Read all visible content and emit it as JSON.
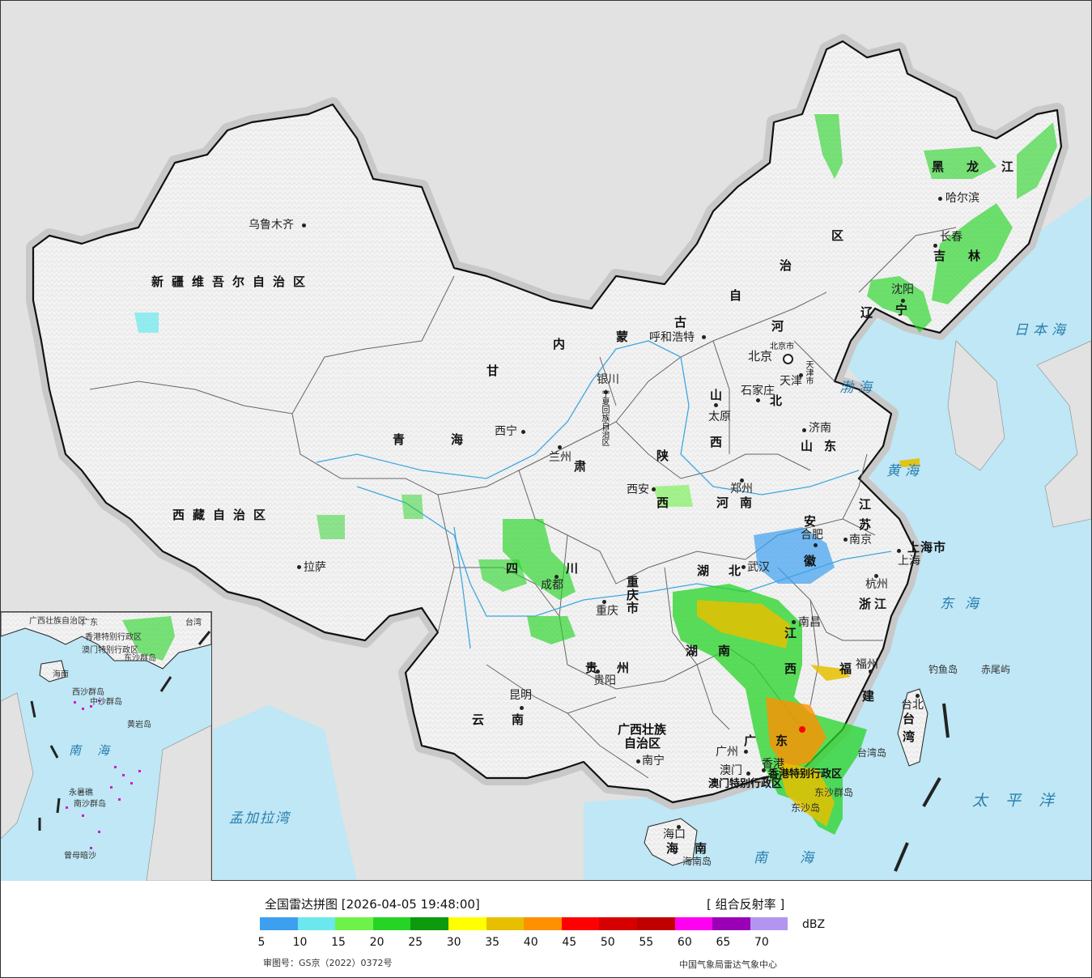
{
  "legend": {
    "title": "全国雷达拼图 [2026-04-05 19:48:00]",
    "product": "[ 组合反射率 ]",
    "unit": "dBZ",
    "ticks": [
      "5",
      "10",
      "15",
      "20",
      "25",
      "30",
      "35",
      "40",
      "45",
      "50",
      "55",
      "60",
      "65",
      "70"
    ],
    "colors": [
      "#3d9ff0",
      "#6ae8ee",
      "#6ef24a",
      "#25d425",
      "#0d9a0d",
      "#ffff00",
      "#e6c000",
      "#ff9000",
      "#ff0000",
      "#d60000",
      "#c00000",
      "#ff00f0",
      "#9900b8",
      "#b395f0"
    ],
    "review_number": "审图号：GS京（2022）0372号",
    "organization": "中国气象局雷达气象中心"
  },
  "provinces": {
    "xinjiang": "新疆维吾尔自治区",
    "xizang": "西藏自治区",
    "qinghai_1": "青",
    "qinghai_2": "海",
    "gansu": "甘",
    "gansu_2": "肃",
    "neimenggu_1": "内",
    "neimenggu_2": "蒙",
    "neimenggu_3": "古",
    "neimenggu_4": "自",
    "neimenggu_5": "治",
    "neimenggu_6": "区",
    "heilongjiang": "黑龙江",
    "jilin": "吉林",
    "liaoning_1": "辽",
    "liaoning_2": "宁",
    "hebei_1": "河",
    "hebei_2": "北",
    "shanxi_1": "山",
    "shanxi_2": "西",
    "shandong": "山东",
    "henan": "河南",
    "shaanxi_1": "陕",
    "shaanxi_2": "西",
    "jiangsu_1": "江",
    "jiangsu_2": "苏",
    "anhui_1": "安",
    "anhui_2": "徽",
    "shanghai": "上海市",
    "zhejiang": "浙江",
    "hubei": "湖北",
    "hunan_1": "湖",
    "hunan_2": "南",
    "jiangxi_1": "江",
    "jiangxi_2": "西",
    "fujian_1": "福",
    "fujian_2": "建",
    "sichuan_1": "四",
    "sichuan_2": "川",
    "chongqing": "重庆市",
    "guizhou": "贵州",
    "yunnan": "云南",
    "guangxi_1": "广西壮族",
    "guangxi_2": "自治区",
    "guangdong": "广东",
    "hainan": "海南",
    "taiwan_1": "台",
    "taiwan_2": "湾",
    "ningxia": "宁夏回族自治区",
    "beijing_full": "北京市",
    "tianjin_full": "天津市",
    "hk": "香港特别行政区",
    "macau": "澳门特别行政区"
  },
  "cities": {
    "urumqi": "乌鲁木齐",
    "lhasa": "拉萨",
    "xining": "西宁",
    "lanzhou": "兰州",
    "yinchuan": "银川",
    "hohhot": "呼和浩特",
    "harbin": "哈尔滨",
    "changchun": "长春",
    "shenyang": "沈阳",
    "beijing": "北京",
    "tianjin": "天津",
    "shijiazhuang": "石家庄",
    "taiyuan": "太原",
    "jinan": "济南",
    "zhengzhou": "郑州",
    "xian": "西安",
    "hefei": "合肥",
    "nanjing": "南京",
    "shanghai": "上海",
    "hangzhou": "杭州",
    "wuhan": "武汉",
    "nanchang": "南昌",
    "fuzhou": "福州",
    "chengdu": "成都",
    "chongqing": "重庆",
    "guiyang": "贵阳",
    "kunming": "昆明",
    "nanning": "南宁",
    "guangzhou": "广州",
    "macau": "澳门",
    "hongkong": "香港",
    "haikou": "海口",
    "taipei": "台北"
  },
  "seas": {
    "bohai": "渤海",
    "huanghai": "黄海",
    "donghai": "东海",
    "nanhai": "南海",
    "riben": "日本海",
    "taipingyang": "太平洋",
    "mengjiala": "孟加拉湾"
  },
  "islands": {
    "diaoyu": "钓鱼岛",
    "chiwei": "赤尾屿",
    "taiwan_island": "台湾岛",
    "hainan_island": "海南岛",
    "dongsha": "东沙群岛",
    "dongsha_short": "东沙岛"
  },
  "inset": {
    "guangxi": "广西壮族自治区",
    "guangdong": "广东",
    "taiwan": "台湾",
    "hk": "香港特别行政区",
    "macau": "澳门特别行政区",
    "dongsha": "东沙群岛",
    "hainan": "海南",
    "xisha": "西沙群岛",
    "zhongsha": "中沙群岛",
    "huangyan": "黄岩岛",
    "nanhai": "南海",
    "nansha": "南沙群岛",
    "yongshu": "永暑礁",
    "zengmu": "曾母暗沙"
  }
}
